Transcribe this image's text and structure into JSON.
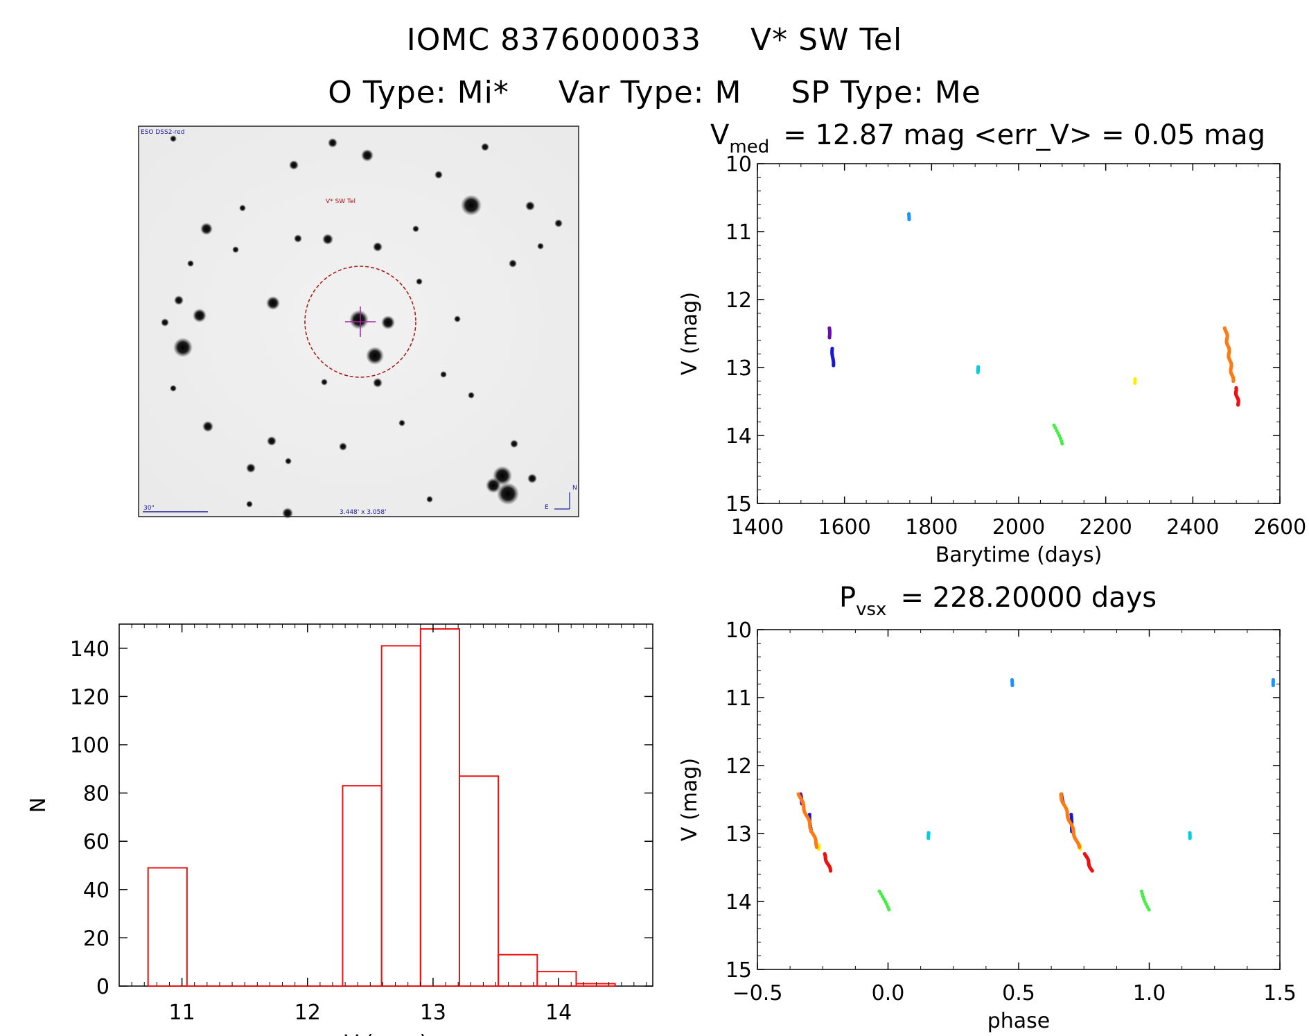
{
  "header": {
    "object_id": "IOMC 8376000033",
    "star_name": "V* SW Tel",
    "otype": "O Type: Mi*",
    "vartype": "Var Type: M",
    "sptype": "SP Type: Me"
  },
  "image_panel": {
    "survey_label": "ESO DSS2-red",
    "target_label": "V* SW Tel",
    "scale_label": "30\"",
    "fov_label": "3.448' x 3.058'",
    "compass_n": "N",
    "compass_e": "E"
  },
  "colors": {
    "purple": "#6a0dad",
    "blue": "#1a1acc",
    "lightblue": "#1e90ff",
    "cyan": "#00d0e0",
    "green": "#44ee44",
    "yellow": "#ffee00",
    "orange": "#ff7a10",
    "red": "#ee1111",
    "hist": "#ee1111"
  },
  "chart_data": [
    {
      "type": "scatter",
      "panel": "lightcurve",
      "title_prefix": "V",
      "title_sub": "med",
      "title_rest": "= 12.87 mag <err_V> = 0.05 mag",
      "xlabel": "Barytime (days)",
      "ylabel": "V (mag)",
      "xlim": [
        1400,
        2600
      ],
      "ylim": [
        10,
        15
      ],
      "y_inverted": true,
      "xticks": [
        1400,
        1600,
        1800,
        2000,
        2200,
        2400,
        2600
      ],
      "yticks": [
        10,
        11,
        12,
        13,
        14,
        15
      ],
      "groups": [
        {
          "color": "purple",
          "x0": 1565,
          "x1": 1566,
          "y0": 12.42,
          "y1": 12.56,
          "n": 9,
          "jit": 0.5
        },
        {
          "color": "blue",
          "x0": 1572,
          "x1": 1574,
          "y0": 12.72,
          "y1": 12.97,
          "n": 14,
          "jit": 0.7
        },
        {
          "color": "lightblue",
          "x0": 1748,
          "x1": 1748,
          "y0": 10.74,
          "y1": 10.82,
          "n": 6,
          "jit": 0.3
        },
        {
          "color": "cyan",
          "x0": 1907,
          "x1": 1907,
          "y0": 12.99,
          "y1": 13.07,
          "n": 5,
          "jit": 0.3
        },
        {
          "color": "green",
          "x0": 2083,
          "x1": 2098,
          "y0": 13.85,
          "y1": 14.12,
          "n": 8,
          "jit": 1.5
        },
        {
          "color": "yellow",
          "x0": 2267,
          "x1": 2267,
          "y0": 13.17,
          "y1": 13.23,
          "n": 4,
          "jit": 0.3
        },
        {
          "color": "orange",
          "x0": 2475,
          "x1": 2492,
          "y0": 12.42,
          "y1": 13.2,
          "n": 55,
          "jit": 1.2
        },
        {
          "color": "red",
          "x0": 2498,
          "x1": 2505,
          "y0": 13.3,
          "y1": 13.55,
          "n": 22,
          "jit": 1.0
        }
      ]
    },
    {
      "type": "bar",
      "panel": "histogram",
      "xlabel": "V (mag)",
      "ylabel": "N",
      "xlim": [
        10.5,
        14.75
      ],
      "ylim": [
        0,
        150
      ],
      "xticks": [
        11,
        12,
        13,
        14
      ],
      "yticks": [
        0,
        20,
        40,
        60,
        80,
        100,
        120,
        140
      ],
      "bin_edges": [
        10.73,
        11.04,
        11.35,
        11.66,
        11.97,
        12.28,
        12.59,
        12.9,
        13.21,
        13.52,
        13.83,
        14.14,
        14.45
      ],
      "values": [
        49,
        0,
        0,
        0,
        0,
        83,
        141,
        148,
        87,
        13,
        6,
        1
      ]
    },
    {
      "type": "scatter",
      "panel": "phased",
      "title_prefix": "P",
      "title_sub": "vsx",
      "title_rest": "= 228.20000 days",
      "xlabel": "phase",
      "ylabel": "V (mag)",
      "xlim": [
        -0.5,
        1.5
      ],
      "ylim": [
        10,
        15
      ],
      "y_inverted": true,
      "xticks": [
        -0.5,
        0.0,
        0.5,
        1.0,
        1.5
      ],
      "xtick_labels": [
        "−0.5",
        "0.0",
        "0.5",
        "1.0",
        "1.5"
      ],
      "yticks": [
        10,
        11,
        12,
        13,
        14,
        15
      ],
      "groups": [
        {
          "color": "purple",
          "x0": -0.335,
          "x1": -0.33,
          "y0": 12.42,
          "y1": 12.56,
          "n": 8,
          "jit": 0.5
        },
        {
          "color": "blue",
          "x0": -0.3,
          "x1": -0.295,
          "y0": 12.72,
          "y1": 12.97,
          "n": 10,
          "jit": 0.6
        },
        {
          "color": "lightblue",
          "x0": 0.475,
          "x1": 0.475,
          "y0": 10.74,
          "y1": 10.82,
          "n": 5,
          "jit": 0.3
        },
        {
          "color": "cyan",
          "x0": 0.155,
          "x1": 0.155,
          "y0": 12.99,
          "y1": 13.07,
          "n": 5,
          "jit": 0.3
        },
        {
          "color": "green",
          "x0": -0.03,
          "x1": 0.0,
          "y0": 13.85,
          "y1": 14.12,
          "n": 8,
          "jit": 1.5
        },
        {
          "color": "yellow",
          "x0": -0.265,
          "x1": -0.265,
          "y0": 13.17,
          "y1": 13.23,
          "n": 4,
          "jit": 0.3
        },
        {
          "color": "orange",
          "x0": -0.34,
          "x1": -0.27,
          "y0": 12.42,
          "y1": 13.2,
          "n": 45,
          "jit": 1.2
        },
        {
          "color": "red",
          "x0": -0.245,
          "x1": -0.22,
          "y0": 13.3,
          "y1": 13.55,
          "n": 20,
          "jit": 1.0
        },
        {
          "color": "purple",
          "x0": 0.665,
          "x1": 0.67,
          "y0": 12.42,
          "y1": 12.56,
          "n": 8,
          "jit": 0.5
        },
        {
          "color": "blue",
          "x0": 0.7,
          "x1": 0.705,
          "y0": 12.72,
          "y1": 12.97,
          "n": 10,
          "jit": 0.6
        },
        {
          "color": "lightblue",
          "x0": 1.475,
          "x1": 1.475,
          "y0": 10.74,
          "y1": 10.82,
          "n": 5,
          "jit": 0.3
        },
        {
          "color": "cyan",
          "x0": 1.155,
          "x1": 1.155,
          "y0": 12.99,
          "y1": 13.07,
          "n": 5,
          "jit": 0.3
        },
        {
          "color": "green",
          "x0": 0.97,
          "x1": 1.0,
          "y0": 13.85,
          "y1": 14.12,
          "n": 8,
          "jit": 1.5
        },
        {
          "color": "yellow",
          "x0": 0.735,
          "x1": 0.735,
          "y0": 13.17,
          "y1": 13.23,
          "n": 4,
          "jit": 0.3
        },
        {
          "color": "orange",
          "x0": 0.66,
          "x1": 0.73,
          "y0": 12.42,
          "y1": 13.2,
          "n": 45,
          "jit": 1.2
        },
        {
          "color": "red",
          "x0": 0.755,
          "x1": 0.78,
          "y0": 13.3,
          "y1": 13.55,
          "n": 20,
          "jit": 1.0
        }
      ]
    }
  ]
}
